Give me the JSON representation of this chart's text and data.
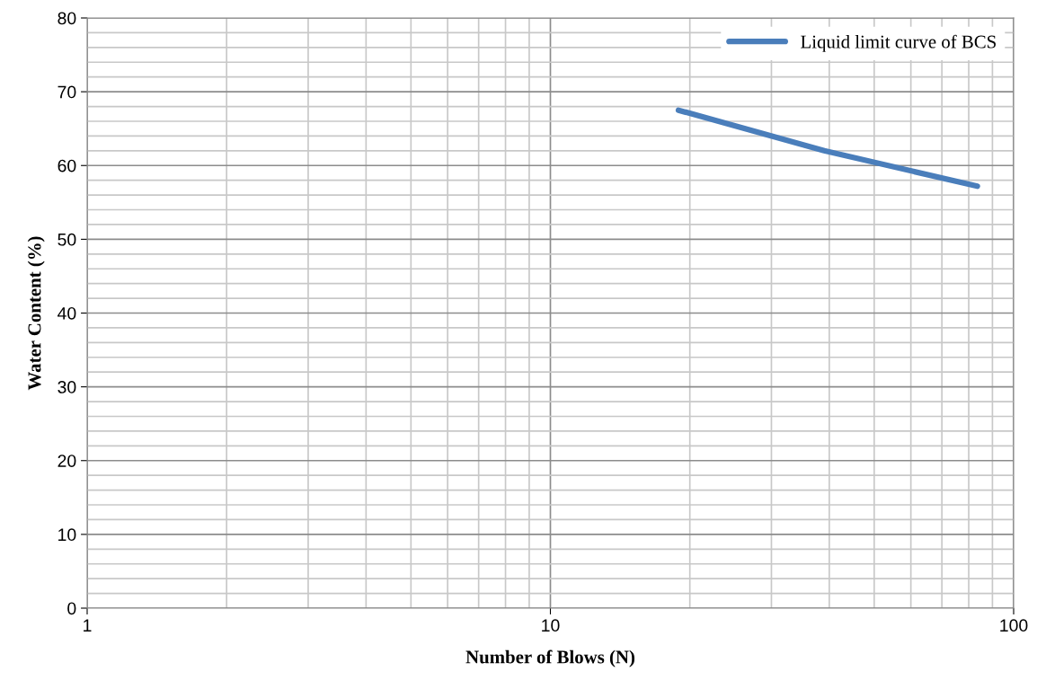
{
  "chart_data": {
    "type": "line",
    "xlabel": "Number of Blows (N)",
    "ylabel": "Water Content (%)",
    "x": [
      18.9,
      39,
      83.5
    ],
    "series": [
      {
        "name": "Liquid limit curve of BCS",
        "color": "#4a7ebb",
        "values": [
          67.5,
          62.0,
          57.2
        ]
      }
    ],
    "log": "x",
    "xlim": [
      1,
      100
    ],
    "xticks": [
      1,
      10,
      100
    ],
    "ylim": [
      0,
      80
    ],
    "yticks": [
      0,
      10,
      20,
      30,
      40,
      50,
      60,
      70,
      80
    ],
    "grid": true,
    "legend": "top right",
    "marker": "none",
    "line_style": "solid"
  }
}
